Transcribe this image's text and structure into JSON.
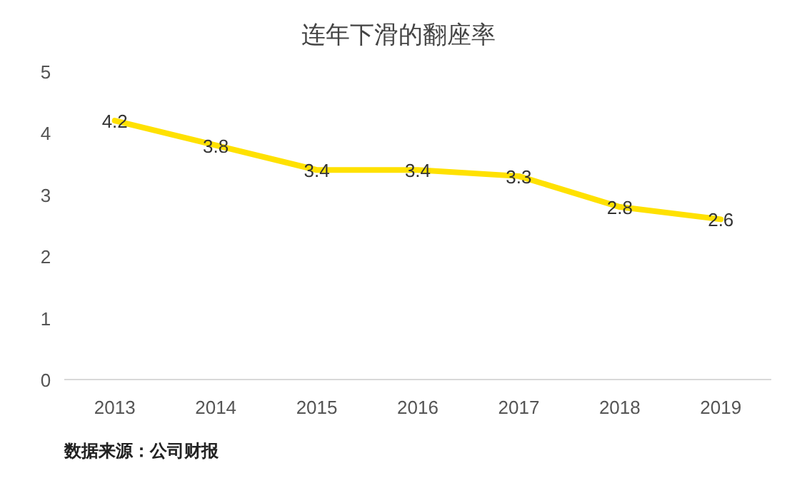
{
  "chart_data": {
    "type": "line",
    "title": "连年下滑的翻座率",
    "categories": [
      "2013",
      "2014",
      "2015",
      "2016",
      "2017",
      "2018",
      "2019"
    ],
    "values": [
      4.2,
      3.8,
      3.4,
      3.4,
      3.3,
      2.8,
      2.6
    ],
    "color": "#ffe100",
    "ylim": [
      0,
      5
    ],
    "yticks": [
      0,
      1,
      2,
      3,
      4,
      5
    ],
    "grid": false,
    "data_labels": true,
    "annotations": [
      "数据来源：公司财报"
    ]
  }
}
